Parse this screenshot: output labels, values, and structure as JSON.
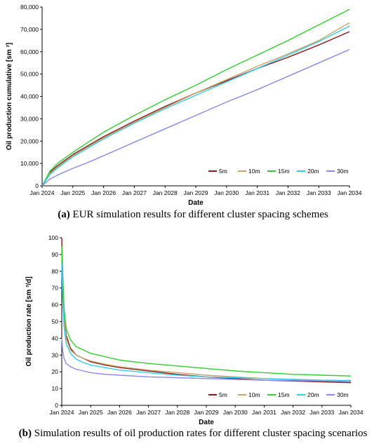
{
  "colors": {
    "5m": "#8b1a1a",
    "10m": "#c8a36a",
    "15m": "#33cc33",
    "20m": "#33ccee",
    "30m": "#8888ee"
  },
  "chart_data": [
    {
      "type": "line",
      "panel": "a",
      "caption_tag": "(a)",
      "caption_text": " EUR simulation results for different cluster spacing schemes",
      "xlabel": "Date",
      "ylabel": "Oil production cumulative [sm ³]",
      "x_ticks": [
        "Jan 2024",
        "Jan 2025",
        "Jan 2026",
        "Jan 2027",
        "Jan 2028",
        "Jan 2029",
        "Jan 2030",
        "Jan 2031",
        "Jan 2032",
        "Jan 2033",
        "Jan 2034"
      ],
      "y_ticks": [
        "0",
        "10,000",
        "20,000",
        "30,000",
        "40,000",
        "50,000",
        "60,000",
        "70,000",
        "80,000"
      ],
      "xlim": [
        2024,
        2034
      ],
      "ylim": [
        0,
        80000
      ],
      "legend": "bottom-right",
      "x": [
        2024,
        2024.25,
        2024.5,
        2025,
        2025.5,
        2026,
        2027,
        2028,
        2029,
        2030,
        2031,
        2032,
        2033,
        2034
      ],
      "series": [
        {
          "name": "5m",
          "values": [
            0,
            6000,
            9000,
            14000,
            18000,
            22000,
            29000,
            35500,
            41500,
            47000,
            52500,
            57500,
            63000,
            69000
          ]
        },
        {
          "name": "10m",
          "values": [
            0,
            5500,
            8500,
            13500,
            17500,
            21500,
            28500,
            35000,
            41500,
            47500,
            53500,
            59000,
            65000,
            73000
          ]
        },
        {
          "name": "15m",
          "values": [
            0,
            6500,
            10000,
            15000,
            19500,
            24000,
            31500,
            38500,
            45000,
            52000,
            58500,
            65000,
            72000,
            79000
          ]
        },
        {
          "name": "20m",
          "values": [
            0,
            5000,
            8000,
            13000,
            17000,
            21000,
            28000,
            34500,
            40500,
            46500,
            52500,
            58500,
            64500,
            71500
          ]
        },
        {
          "name": "30m",
          "values": [
            0,
            3000,
            4800,
            7800,
            10500,
            13500,
            19500,
            25500,
            31500,
            37500,
            43000,
            49000,
            55000,
            61000
          ]
        }
      ]
    },
    {
      "type": "line",
      "panel": "b",
      "caption_tag": "(b)",
      "caption_text": " Simulation results of oil production rates for different cluster spacing scenarios",
      "xlabel": "Date",
      "ylabel": "Oil production rate [sm ³/d]",
      "x_ticks": [
        "Jan 2024",
        "Jan 2025",
        "Jan 2026",
        "Jan 2027",
        "Jan 2028",
        "Jan 2029",
        "Jan 2030",
        "Jan 2031",
        "Jan 2032",
        "Jan 2033",
        "Jan 2034"
      ],
      "y_ticks": [
        "0",
        "10",
        "20",
        "30",
        "40",
        "50",
        "60",
        "70",
        "80",
        "90",
        "100"
      ],
      "xlim": [
        2024,
        2034
      ],
      "ylim": [
        0,
        100
      ],
      "legend": "bottom-right",
      "x": [
        2024,
        2024.03,
        2024.08,
        2024.15,
        2024.3,
        2024.5,
        2024.75,
        2025,
        2025.5,
        2026,
        2027,
        2028,
        2029,
        2030,
        2031,
        2032,
        2033,
        2034
      ],
      "series": [
        {
          "name": "5m",
          "values": [
            100,
            80,
            55,
            42,
            34,
            30,
            28,
            26,
            24,
            22.5,
            20.5,
            18.5,
            17,
            16,
            15,
            14.5,
            14,
            13.5
          ]
        },
        {
          "name": "10m",
          "values": [
            92,
            72,
            52,
            40,
            33,
            30,
            28,
            26.5,
            24.5,
            23,
            21,
            19.5,
            18,
            17,
            16,
            15.5,
            15,
            14.5
          ]
        },
        {
          "name": "15m",
          "values": [
            95,
            78,
            58,
            46,
            39,
            35,
            33,
            31,
            29,
            27,
            25,
            23.5,
            22,
            20.5,
            19.5,
            18.5,
            18,
            17.5
          ]
        },
        {
          "name": "20m",
          "values": [
            85,
            65,
            47,
            37,
            31,
            27.5,
            25.5,
            24,
            22.5,
            21,
            19.5,
            18,
            17,
            16.5,
            16,
            15.5,
            15,
            14.8
          ]
        },
        {
          "name": "30m",
          "values": [
            40,
            33,
            28,
            25,
            23,
            21.5,
            20.5,
            19.5,
            18.5,
            18,
            17,
            16.5,
            16,
            15.5,
            15,
            14.8,
            14.5,
            14.2
          ]
        }
      ]
    }
  ]
}
